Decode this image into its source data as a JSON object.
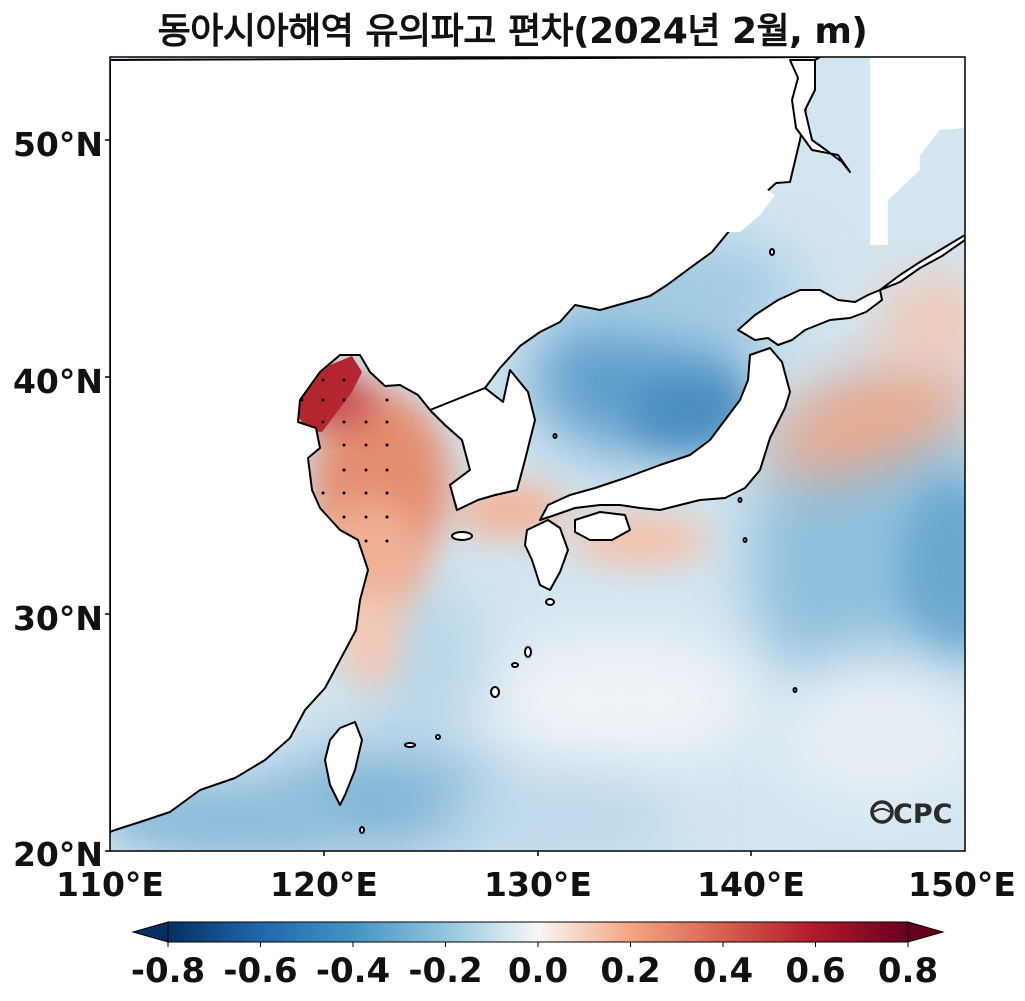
{
  "title": "동아시아해역 유의파고 편차(2024년 2월, m)",
  "map": {
    "lon_range": [
      110,
      150
    ],
    "lat_range": [
      20,
      53.5
    ],
    "lat_ticks": [
      "20°N",
      "30°N",
      "40°N",
      "50°N"
    ],
    "lon_ticks": [
      "110°E",
      "120°E",
      "130°E",
      "140°E",
      "150°E"
    ],
    "logo": "OCPC"
  },
  "colorbar": {
    "ticks": [
      "-0.8",
      "-0.6",
      "-0.4",
      "-0.2",
      "0.0",
      "0.2",
      "0.4",
      "0.6",
      "0.8"
    ],
    "range": [
      -0.8,
      0.8
    ],
    "colormap": "RdBu_r",
    "low_color": "#053061",
    "high_color": "#67001f"
  }
}
